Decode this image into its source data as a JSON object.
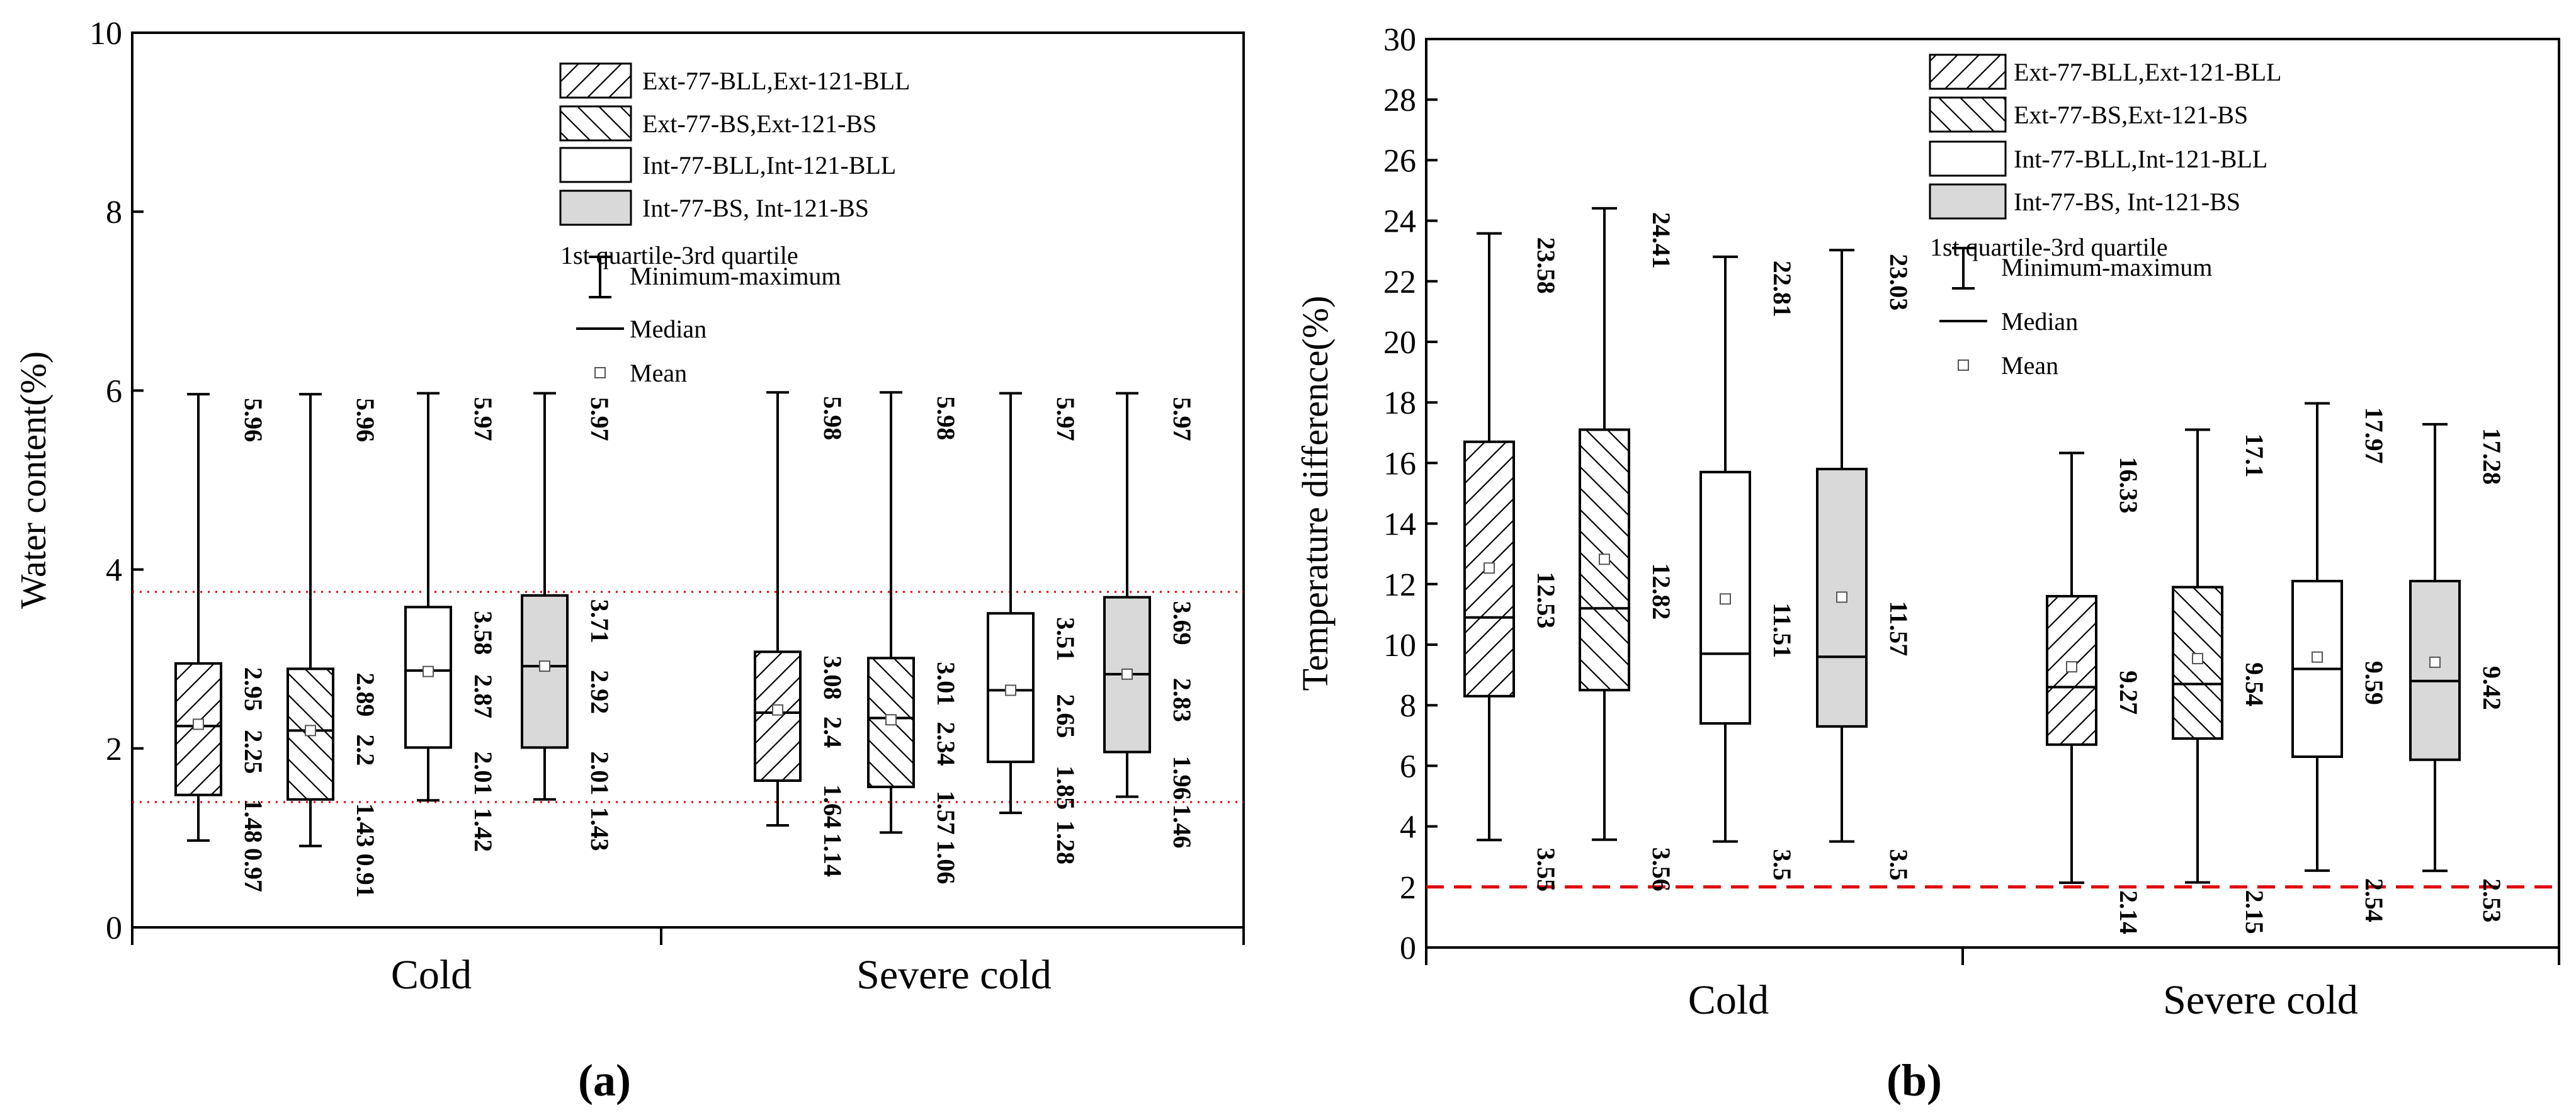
{
  "figure": {
    "panel_a_label": "(a)",
    "panel_b_label": "(b)"
  },
  "colors": {
    "gray_fill": "#d9d9d9",
    "threshold_line": "#e00000",
    "box_stroke": "#000000"
  },
  "legend": {
    "entries": [
      {
        "label": "Ext-77-BLL,Ext-121-BLL",
        "pattern": "hatch-fwd"
      },
      {
        "label": "Ext-77-BS,Ext-121-BS",
        "pattern": "hatch-back"
      },
      {
        "label": "Int-77-BLL,Int-121-BLL",
        "pattern": "white"
      },
      {
        "label": "Int-77-BS, Int-121-BS",
        "pattern": "gray"
      }
    ],
    "quartile_text": "1st quartile-3rd quartile",
    "minmax_text": "Minimum-maximum",
    "median_text": "Median",
    "mean_text": "Mean"
  },
  "chart_data": [
    {
      "type": "box",
      "panel": "a",
      "ylabel": "Water content(%)",
      "ylim": [
        0,
        10
      ],
      "yticks": [
        0,
        2,
        4,
        6,
        8,
        10
      ],
      "groups": [
        "Cold",
        "Severe cold"
      ],
      "threshold_lines": [
        {
          "y": 3.75,
          "style": "dotted"
        },
        {
          "y": 1.4,
          "style": "dotted"
        }
      ],
      "boxes": [
        {
          "group": "Cold",
          "pattern": "hatch-fwd",
          "min": 0.97,
          "q1": 1.48,
          "median": 2.25,
          "mean": 2.27,
          "q3": 2.95,
          "max": 5.96,
          "labels": [
            "5.96",
            "2.95",
            "2.25",
            "1.48",
            "0.97"
          ]
        },
        {
          "group": "Cold",
          "pattern": "hatch-back",
          "min": 0.91,
          "q1": 1.43,
          "median": 2.2,
          "mean": 2.2,
          "q3": 2.89,
          "max": 5.96,
          "labels": [
            "5.96",
            "2.89",
            "2.2",
            "1.43",
            "0.91"
          ]
        },
        {
          "group": "Cold",
          "pattern": "white",
          "min": 1.42,
          "q1": 2.01,
          "median": 2.87,
          "mean": 2.86,
          "q3": 3.58,
          "max": 5.97,
          "labels": [
            "5.97",
            "3.58",
            "2.87",
            "2.01",
            "1.42"
          ]
        },
        {
          "group": "Cold",
          "pattern": "gray",
          "min": 1.43,
          "q1": 2.01,
          "median": 2.92,
          "mean": 2.92,
          "q3": 3.71,
          "max": 5.97,
          "labels": [
            "5.97",
            "3.71",
            "2.92",
            "2.01",
            "1.43"
          ]
        },
        {
          "group": "Severe cold",
          "pattern": "hatch-fwd",
          "min": 1.14,
          "q1": 1.64,
          "median": 2.4,
          "mean": 2.43,
          "q3": 3.08,
          "max": 5.98,
          "labels": [
            "5.98",
            "3.08",
            "2.4",
            "1.64",
            "1.14"
          ]
        },
        {
          "group": "Severe cold",
          "pattern": "hatch-back",
          "min": 1.06,
          "q1": 1.57,
          "median": 2.34,
          "mean": 2.32,
          "q3": 3.01,
          "max": 5.98,
          "labels": [
            "5.98",
            "3.01",
            "2.34",
            "1.57",
            "1.06"
          ]
        },
        {
          "group": "Severe cold",
          "pattern": "white",
          "min": 1.28,
          "q1": 1.85,
          "median": 2.65,
          "mean": 2.65,
          "q3": 3.51,
          "max": 5.97,
          "labels": [
            "5.97",
            "3.51",
            "2.65",
            "1.85",
            "1.28"
          ]
        },
        {
          "group": "Severe cold",
          "pattern": "gray",
          "min": 1.46,
          "q1": 1.96,
          "median": 2.83,
          "mean": 2.83,
          "q3": 3.69,
          "max": 5.97,
          "labels": [
            "5.97",
            "3.69",
            "2.83",
            "1.96",
            "1.46"
          ]
        }
      ]
    },
    {
      "type": "box",
      "panel": "b",
      "ylabel": "Temperature difference(%)",
      "ylim": [
        0,
        30
      ],
      "yticks": [
        0,
        2,
        4,
        6,
        8,
        10,
        12,
        14,
        16,
        18,
        20,
        22,
        24,
        26,
        28,
        30
      ],
      "groups": [
        "Cold",
        "Severe cold"
      ],
      "threshold_lines": [
        {
          "y": 2,
          "style": "dashed"
        }
      ],
      "boxes": [
        {
          "group": "Cold",
          "pattern": "hatch-fwd",
          "min": 3.55,
          "q1": 8.3,
          "median": 10.9,
          "mean": 12.53,
          "q3": 16.7,
          "max": 23.58,
          "labels": [
            "23.58",
            "12.53",
            "3.55"
          ]
        },
        {
          "group": "Cold",
          "pattern": "hatch-back",
          "min": 3.56,
          "q1": 8.5,
          "median": 11.2,
          "mean": 12.82,
          "q3": 17.1,
          "max": 24.41,
          "labels": [
            "24.41",
            "12.82",
            "3.56"
          ]
        },
        {
          "group": "Cold",
          "pattern": "white",
          "min": 3.5,
          "q1": 7.4,
          "median": 9.7,
          "mean": 11.51,
          "q3": 15.7,
          "max": 22.81,
          "labels": [
            "22.81",
            "11.51",
            "3.5"
          ]
        },
        {
          "group": "Cold",
          "pattern": "gray",
          "min": 3.5,
          "q1": 7.3,
          "median": 9.6,
          "mean": 11.57,
          "q3": 15.8,
          "max": 23.03,
          "labels": [
            "23.03",
            "11.57",
            "3.5"
          ]
        },
        {
          "group": "Severe cold",
          "pattern": "hatch-fwd",
          "min": 2.14,
          "q1": 6.7,
          "median": 8.6,
          "mean": 9.27,
          "q3": 11.6,
          "max": 16.33,
          "labels": [
            "16.33",
            "9.27",
            "2.14"
          ]
        },
        {
          "group": "Severe cold",
          "pattern": "hatch-back",
          "min": 2.15,
          "q1": 6.9,
          "median": 8.7,
          "mean": 9.54,
          "q3": 11.9,
          "max": 17.1,
          "labels": [
            "17.1",
            "9.54",
            "2.15"
          ]
        },
        {
          "group": "Severe cold",
          "pattern": "white",
          "min": 2.54,
          "q1": 6.3,
          "median": 9.2,
          "mean": 9.59,
          "q3": 12.1,
          "max": 17.97,
          "labels": [
            "17.97",
            "9.59",
            "2.54"
          ]
        },
        {
          "group": "Severe cold",
          "pattern": "gray",
          "min": 2.53,
          "q1": 6.2,
          "median": 8.8,
          "mean": 9.42,
          "q3": 12.1,
          "max": 17.28,
          "labels": [
            "17.28",
            "9.42",
            "2.53"
          ]
        }
      ]
    }
  ]
}
